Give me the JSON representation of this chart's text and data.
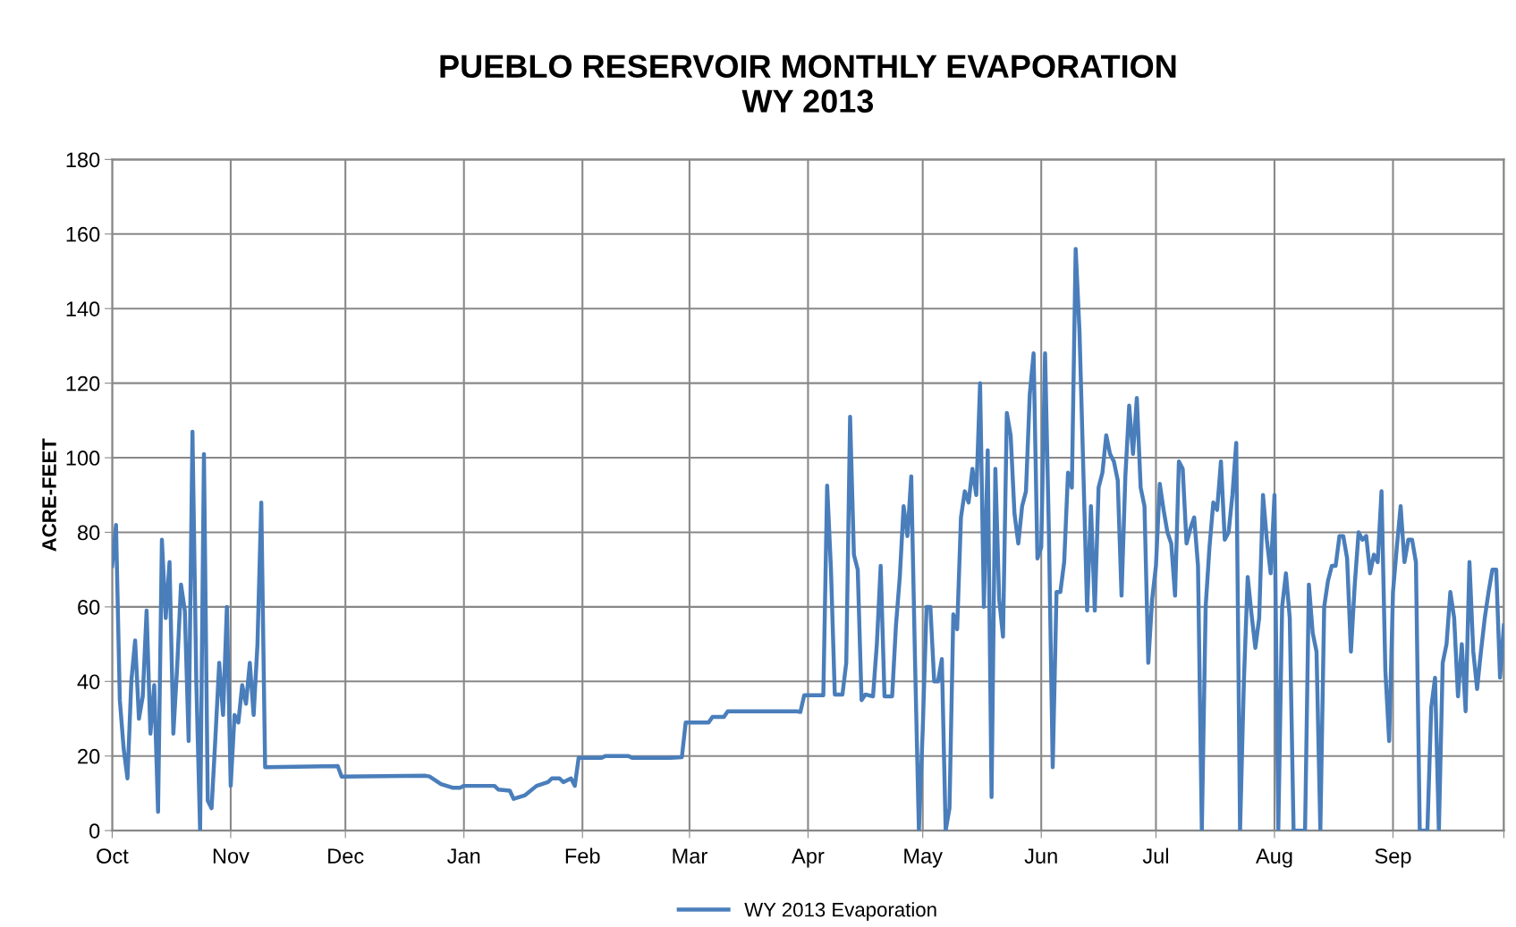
{
  "chart_data": {
    "type": "line",
    "title": "PUEBLO RESERVOIR MONTHLY EVAPORATION\nWY 2013",
    "ylabel": "ACRE-FEET",
    "x": [
      "2012-10-01",
      "2012-10-02",
      "2012-10-03",
      "2012-10-04",
      "2012-10-05",
      "2012-10-06",
      "2012-10-07",
      "2012-10-08",
      "2012-10-09",
      "2012-10-10",
      "2012-10-11",
      "2012-10-12",
      "2012-10-13",
      "2012-10-14",
      "2012-10-15",
      "2012-10-16",
      "2012-10-17",
      "2012-10-18",
      "2012-10-19",
      "2012-10-20",
      "2012-10-21",
      "2012-10-22",
      "2012-10-23",
      "2012-10-24",
      "2012-10-25",
      "2012-10-26",
      "2012-10-27",
      "2012-10-28",
      "2012-10-29",
      "2012-10-30",
      "2012-10-31",
      "2012-11-01",
      "2012-11-02",
      "2012-11-03",
      "2012-11-04",
      "2012-11-05",
      "2012-11-06",
      "2012-11-07",
      "2012-11-08",
      "2012-11-09",
      "2012-11-10",
      "2012-11-29",
      "2012-11-30",
      "2012-12-22",
      "2012-12-23",
      "2012-12-26",
      "2012-12-29",
      "2012-12-31",
      "2013-01-01",
      "2013-01-09",
      "2013-01-10",
      "2013-01-13",
      "2013-01-14",
      "2013-01-17",
      "2013-01-20",
      "2013-01-23",
      "2013-01-24",
      "2013-01-26",
      "2013-01-27",
      "2013-01-29",
      "2013-01-30",
      "2013-01-31",
      "2013-02-06",
      "2013-02-07",
      "2013-02-13",
      "2013-02-14",
      "2013-02-24",
      "2013-02-27",
      "2013-02-28",
      "2013-03-06",
      "2013-03-07",
      "2013-03-10",
      "2013-03-11",
      "2013-03-29",
      "2013-03-30",
      "2013-03-31",
      "2013-04-05",
      "2013-04-06",
      "2013-04-07",
      "2013-04-08",
      "2013-04-10",
      "2013-04-11",
      "2013-04-12",
      "2013-04-13",
      "2013-04-14",
      "2013-04-15",
      "2013-04-16",
      "2013-04-18",
      "2013-04-19",
      "2013-04-20",
      "2013-04-21",
      "2013-04-23",
      "2013-04-24",
      "2013-04-25",
      "2013-04-26",
      "2013-04-27",
      "2013-04-28",
      "2013-04-29",
      "2013-04-30",
      "2013-05-01",
      "2013-05-02",
      "2013-05-03",
      "2013-05-04",
      "2013-05-05",
      "2013-05-06",
      "2013-05-07",
      "2013-05-08",
      "2013-05-09",
      "2013-05-10",
      "2013-05-11",
      "2013-05-12",
      "2013-05-13",
      "2013-05-14",
      "2013-05-15",
      "2013-05-16",
      "2013-05-17",
      "2013-05-18",
      "2013-05-19",
      "2013-05-20",
      "2013-05-21",
      "2013-05-22",
      "2013-05-23",
      "2013-05-24",
      "2013-05-25",
      "2013-05-26",
      "2013-05-27",
      "2013-05-28",
      "2013-05-29",
      "2013-05-30",
      "2013-05-31",
      "2013-06-01",
      "2013-06-02",
      "2013-06-03",
      "2013-06-04",
      "2013-06-05",
      "2013-06-06",
      "2013-06-07",
      "2013-06-08",
      "2013-06-09",
      "2013-06-10",
      "2013-06-11",
      "2013-06-12",
      "2013-06-13",
      "2013-06-14",
      "2013-06-15",
      "2013-06-16",
      "2013-06-17",
      "2013-06-18",
      "2013-06-19",
      "2013-06-20",
      "2013-06-21",
      "2013-06-22",
      "2013-06-23",
      "2013-06-24",
      "2013-06-25",
      "2013-06-26",
      "2013-06-27",
      "2013-06-28",
      "2013-06-29",
      "2013-06-30",
      "2013-07-01",
      "2013-07-02",
      "2013-07-03",
      "2013-07-04",
      "2013-07-05",
      "2013-07-06",
      "2013-07-07",
      "2013-07-08",
      "2013-07-09",
      "2013-07-10",
      "2013-07-11",
      "2013-07-12",
      "2013-07-13",
      "2013-07-14",
      "2013-07-15",
      "2013-07-16",
      "2013-07-17",
      "2013-07-18",
      "2013-07-19",
      "2013-07-20",
      "2013-07-21",
      "2013-07-22",
      "2013-07-23",
      "2013-07-24",
      "2013-07-25",
      "2013-07-26",
      "2013-07-27",
      "2013-07-28",
      "2013-07-29",
      "2013-07-30",
      "2013-07-31",
      "2013-08-01",
      "2013-08-02",
      "2013-08-03",
      "2013-08-04",
      "2013-08-05",
      "2013-08-06",
      "2013-08-07",
      "2013-08-08",
      "2013-08-09",
      "2013-08-10",
      "2013-08-11",
      "2013-08-12",
      "2013-08-13",
      "2013-08-14",
      "2013-08-15",
      "2013-08-16",
      "2013-08-17",
      "2013-08-18",
      "2013-08-19",
      "2013-08-20",
      "2013-08-21",
      "2013-08-22",
      "2013-08-23",
      "2013-08-24",
      "2013-08-25",
      "2013-08-26",
      "2013-08-27",
      "2013-08-28",
      "2013-08-29",
      "2013-08-30",
      "2013-08-31",
      "2013-09-01",
      "2013-09-02",
      "2013-09-03",
      "2013-09-04",
      "2013-09-05",
      "2013-09-06",
      "2013-09-07",
      "2013-09-08",
      "2013-09-09",
      "2013-09-10",
      "2013-09-11",
      "2013-09-12",
      "2013-09-13",
      "2013-09-14",
      "2013-09-15",
      "2013-09-16",
      "2013-09-17",
      "2013-09-18",
      "2013-09-19",
      "2013-09-20",
      "2013-09-21",
      "2013-09-22",
      "2013-09-23",
      "2013-09-24",
      "2013-09-25",
      "2013-09-26",
      "2013-09-27",
      "2013-09-28",
      "2013-09-29",
      "2013-09-30"
    ],
    "series": [
      {
        "name": "WY 2013 Evaporation",
        "color": "#4a7ebb",
        "values": [
          71,
          82,
          35,
          22,
          14,
          40,
          51,
          30,
          36,
          59,
          26,
          39,
          5,
          78,
          57,
          72,
          26,
          44,
          66,
          59,
          24,
          107,
          40,
          0,
          101,
          8,
          6,
          25,
          45,
          31,
          60,
          12,
          31,
          29,
          39,
          34,
          45,
          31,
          50,
          88,
          17,
          17.3,
          14.5,
          14.7,
          14.5,
          12.5,
          11.5,
          11.5,
          12,
          12,
          11,
          10.7,
          8.5,
          9.5,
          12,
          13,
          14,
          14,
          13,
          14,
          12,
          19.5,
          19.5,
          20,
          20,
          19.5,
          19.5,
          19.7,
          29,
          29,
          30.5,
          30.5,
          32,
          32,
          31.8,
          36.3,
          36.3,
          92.5,
          70,
          36.5,
          36.5,
          45,
          111,
          74,
          70,
          35,
          36.5,
          36,
          50,
          71,
          36,
          36,
          55,
          68,
          87,
          79,
          95,
          45,
          0,
          27,
          60,
          60,
          40,
          40,
          46,
          0,
          6,
          58,
          54,
          84,
          91,
          88,
          97,
          90,
          120,
          60,
          102,
          9,
          97,
          62,
          52,
          112,
          106,
          85,
          77,
          87,
          91,
          117,
          128,
          73,
          76,
          128,
          80,
          17,
          64,
          64,
          72,
          96,
          92,
          156,
          134,
          97,
          59,
          87,
          59,
          92,
          96,
          106,
          101,
          99,
          94,
          63,
          95,
          114,
          101,
          116,
          92,
          87,
          45,
          62,
          71,
          93,
          86,
          80,
          77,
          63,
          99,
          97,
          77,
          81,
          84,
          71,
          0,
          60,
          76,
          88,
          86,
          99,
          78,
          80,
          90,
          104,
          0,
          40,
          68,
          58,
          49,
          57,
          90,
          78,
          69,
          90,
          0,
          60,
          69,
          57,
          0,
          0,
          0,
          0,
          66,
          53,
          48,
          0,
          60,
          67,
          71,
          71,
          79,
          79,
          73,
          48,
          66,
          80,
          78,
          79,
          69,
          74,
          72,
          91,
          43,
          24,
          64,
          76,
          87,
          72,
          78,
          78,
          72,
          0,
          0,
          0,
          33,
          41,
          0,
          45,
          50,
          64,
          57,
          36,
          50,
          32,
          72,
          48,
          38,
          48,
          57,
          64,
          70,
          70,
          41,
          55
        ]
      }
    ],
    "xlim": [
      "2012-10-01",
      "2013-09-30"
    ],
    "xticks": [
      {
        "value": "2012-10-01",
        "label": "Oct"
      },
      {
        "value": "2012-11-01",
        "label": "Nov"
      },
      {
        "value": "2012-12-01",
        "label": "Dec"
      },
      {
        "value": "2013-01-01",
        "label": "Jan"
      },
      {
        "value": "2013-02-01",
        "label": "Feb"
      },
      {
        "value": "2013-03-01",
        "label": "Mar"
      },
      {
        "value": "2013-04-01",
        "label": "Apr"
      },
      {
        "value": "2013-05-01",
        "label": "May"
      },
      {
        "value": "2013-06-01",
        "label": "Jun"
      },
      {
        "value": "2013-07-01",
        "label": "Jul"
      },
      {
        "value": "2013-08-01",
        "label": "Aug"
      },
      {
        "value": "2013-09-01",
        "label": "Sep"
      },
      {
        "value": "2013-09-30",
        "label": null
      }
    ],
    "ylim": [
      0,
      180
    ],
    "yticks": [
      0,
      20,
      40,
      60,
      80,
      100,
      120,
      140,
      160,
      180
    ],
    "grid": true,
    "legend": "bottom",
    "marker": "none",
    "line_style": "solid"
  }
}
